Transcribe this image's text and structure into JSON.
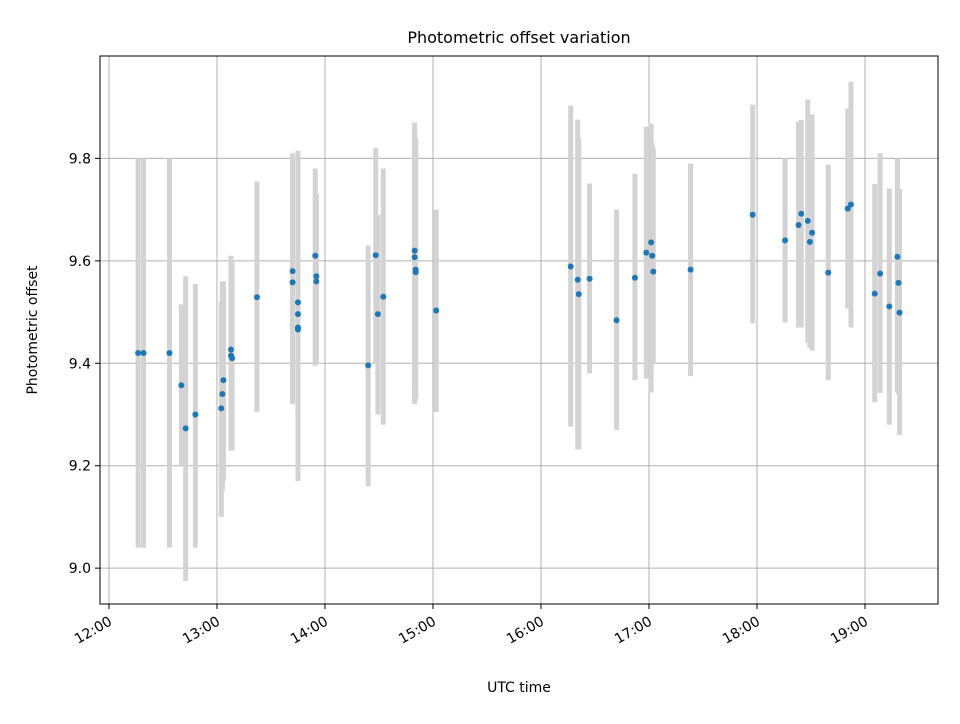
{
  "chart_data": {
    "type": "scatter",
    "title": "Photometric offset variation",
    "xlabel": "UTC time",
    "ylabel": "Photometric offset",
    "x_unit": "hours UTC",
    "xlim": [
      11.917,
      19.676
    ],
    "ylim": [
      8.93,
      10.0
    ],
    "grid": true,
    "xticks": [
      12,
      13,
      14,
      15,
      16,
      17,
      18,
      19
    ],
    "xtick_labels": [
      "12:00",
      "13:00",
      "14:00",
      "15:00",
      "16:00",
      "17:00",
      "18:00",
      "19:00"
    ],
    "yticks": [
      9.0,
      9.2,
      9.4,
      9.6,
      9.8
    ],
    "ytick_labels": [
      "9.0",
      "9.2",
      "9.4",
      "9.6",
      "9.8"
    ],
    "point_color": "#1f77b4",
    "errorbar_color": "#d3d3d3",
    "points_format": [
      "x_hours",
      "y",
      "y_low",
      "y_high"
    ],
    "points": [
      [
        12.27,
        9.42,
        9.04,
        9.8
      ],
      [
        12.32,
        9.42,
        9.04,
        9.8
      ],
      [
        12.56,
        9.42,
        9.04,
        9.8
      ],
      [
        12.67,
        9.357,
        9.2,
        9.515
      ],
      [
        12.71,
        9.273,
        8.975,
        9.57
      ],
      [
        12.8,
        9.3,
        9.04,
        9.555
      ],
      [
        13.04,
        9.312,
        9.1,
        9.52
      ],
      [
        13.05,
        9.34,
        9.15,
        9.56
      ],
      [
        13.06,
        9.367,
        9.17,
        9.56
      ],
      [
        13.13,
        9.427,
        9.23,
        9.61
      ],
      [
        13.13,
        9.415,
        9.23,
        9.6
      ],
      [
        13.14,
        9.41,
        9.23,
        9.6
      ],
      [
        13.37,
        9.529,
        9.305,
        9.755
      ],
      [
        13.7,
        9.58,
        9.32,
        9.81
      ],
      [
        13.7,
        9.558,
        9.33,
        9.8
      ],
      [
        13.75,
        9.519,
        9.17,
        9.815
      ],
      [
        13.75,
        9.496,
        9.3,
        9.79
      ],
      [
        13.75,
        9.47,
        9.35,
        9.7
      ],
      [
        13.75,
        9.466,
        9.35,
        9.7
      ],
      [
        13.91,
        9.61,
        9.395,
        9.78
      ],
      [
        13.92,
        9.57,
        9.4,
        9.73
      ],
      [
        13.92,
        9.56,
        9.4,
        9.73
      ],
      [
        14.4,
        9.396,
        9.16,
        9.63
      ],
      [
        14.47,
        9.611,
        9.4,
        9.82
      ],
      [
        14.49,
        9.496,
        9.3,
        9.69
      ],
      [
        14.54,
        9.53,
        9.28,
        9.78
      ],
      [
        14.83,
        9.62,
        9.32,
        9.87
      ],
      [
        14.83,
        9.607,
        9.37,
        9.86
      ],
      [
        14.84,
        9.583,
        9.33,
        9.84
      ],
      [
        14.84,
        9.578,
        9.33,
        9.83
      ],
      [
        15.03,
        9.503,
        9.305,
        9.7
      ],
      [
        16.275,
        9.589,
        9.276,
        9.903
      ],
      [
        16.34,
        9.563,
        9.232,
        9.876
      ],
      [
        16.35,
        9.535,
        9.232,
        9.84
      ],
      [
        16.45,
        9.565,
        9.38,
        9.751
      ],
      [
        16.7,
        9.484,
        9.27,
        9.7
      ],
      [
        16.87,
        9.567,
        9.367,
        9.77
      ],
      [
        16.975,
        9.616,
        9.37,
        9.862
      ],
      [
        17.02,
        9.636,
        9.343,
        9.868
      ],
      [
        17.03,
        9.61,
        9.4,
        9.83
      ],
      [
        17.04,
        9.579,
        9.4,
        9.82
      ],
      [
        17.385,
        9.583,
        9.375,
        9.79
      ],
      [
        17.96,
        9.69,
        9.478,
        9.905
      ],
      [
        18.26,
        9.64,
        9.48,
        9.8
      ],
      [
        18.385,
        9.67,
        9.47,
        9.872
      ],
      [
        18.41,
        9.692,
        9.47,
        9.875
      ],
      [
        18.47,
        9.678,
        9.44,
        9.915
      ],
      [
        18.49,
        9.637,
        9.43,
        9.88
      ],
      [
        18.51,
        9.655,
        9.425,
        9.886
      ],
      [
        18.66,
        9.577,
        9.367,
        9.788
      ],
      [
        18.84,
        9.702,
        9.507,
        9.897
      ],
      [
        18.87,
        9.71,
        9.47,
        9.95
      ],
      [
        19.09,
        9.536,
        9.324,
        9.75
      ],
      [
        19.14,
        9.575,
        9.342,
        9.81
      ],
      [
        19.225,
        9.511,
        9.28,
        9.741
      ],
      [
        19.3,
        9.608,
        9.343,
        9.8
      ],
      [
        19.31,
        9.557,
        9.34,
        9.74
      ],
      [
        19.32,
        9.499,
        9.26,
        9.74
      ]
    ]
  }
}
